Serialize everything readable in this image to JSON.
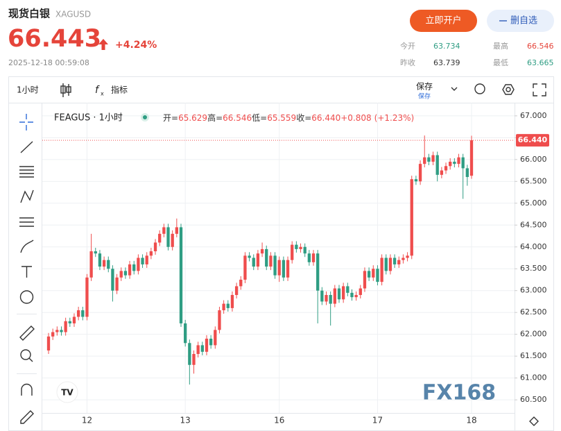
{
  "header": {
    "title": "现货白银",
    "symbol": "XAGUSD",
    "price": "66.443",
    "change": "+4.24%",
    "timestamp": "2025-12-18 00:59:08",
    "open_account": "立即开户",
    "remove_watch": "删自选",
    "stats": [
      {
        "label": "今开",
        "value": "63.734"
      },
      {
        "label": "最高",
        "value": "66.546"
      },
      {
        "label": "昨收",
        "value": "63.739"
      },
      {
        "label": "最低",
        "value": "63.665"
      }
    ]
  },
  "toolbar": {
    "interval": "1小时",
    "indicators": "指标",
    "save": "保存",
    "save_sub": "保存"
  },
  "chart_data": {
    "type": "candlestick",
    "legend": {
      "symbol": "FEAGUS · 1小时",
      "items": [
        {
          "label": "开=",
          "value": "65.629"
        },
        {
          "label": "高=",
          "value": "66.546"
        },
        {
          "label": "低=",
          "value": "65.559"
        },
        {
          "label": "收=",
          "value": "66.440"
        }
      ],
      "change": "+0.808",
      "change_pct": "(+1.23%)"
    },
    "watermark": "FX168",
    "up_color": "#ef4d4d",
    "down_color": "#2f9d83",
    "categories": [
      null,
      null,
      null,
      null,
      null,
      null,
      null,
      null,
      null,
      "12",
      null,
      null,
      null,
      null,
      null,
      null,
      null,
      null,
      null,
      null,
      null,
      null,
      null,
      null,
      null,
      null,
      null,
      null,
      null,
      null,
      null,
      null,
      "13",
      null,
      null,
      null,
      null,
      null,
      null,
      null,
      null,
      null,
      null,
      null,
      null,
      null,
      null,
      null,
      null,
      null,
      null,
      null,
      null,
      null,
      "16",
      null,
      null,
      null,
      null,
      null,
      null,
      null,
      null,
      null,
      null,
      null,
      null,
      null,
      null,
      null,
      null,
      null,
      null,
      null,
      null,
      null,
      null,
      "17",
      null,
      null,
      null,
      null,
      null,
      null,
      null,
      null,
      null,
      null,
      null,
      null,
      null,
      null,
      null,
      null,
      null,
      null,
      null,
      null,
      null,
      "18"
    ],
    "open": [
      61.63,
      61.95,
      62.05,
      62.1,
      62.05,
      62.3,
      62.25,
      62.4,
      62.55,
      62.4,
      63.3,
      63.9,
      63.85,
      63.55,
      63.7,
      63.5,
      63.0,
      63.3,
      63.45,
      63.35,
      63.6,
      63.45,
      63.75,
      63.6,
      63.8,
      63.9,
      64.1,
      64.3,
      64.45,
      64.0,
      64.3,
      64.45,
      62.25,
      61.8,
      61.3,
      61.55,
      61.75,
      61.6,
      61.9,
      61.75,
      62.1,
      62.55,
      62.7,
      62.6,
      62.9,
      63.1,
      63.25,
      63.8,
      63.75,
      63.55,
      63.85,
      63.95,
      63.55,
      63.8,
      63.35,
      63.7,
      63.3,
      63.7,
      64.05,
      63.95,
      64.0,
      63.85,
      63.65,
      63.85,
      63.0,
      62.75,
      62.9,
      62.7,
      63.05,
      62.8,
      63.1,
      62.95,
      62.85,
      62.9,
      63.05,
      63.45,
      63.3,
      63.5,
      63.2,
      63.75,
      63.45,
      63.75,
      63.6,
      63.7,
      63.75,
      63.8,
      65.55,
      65.5,
      65.9,
      66.05,
      65.95,
      66.1,
      65.65,
      65.75,
      65.85,
      65.95,
      65.9,
      66.05,
      65.8,
      65.629
    ],
    "high": [
      62.03,
      62.13,
      62.18,
      62.18,
      62.38,
      62.38,
      62.48,
      62.63,
      62.63,
      63.38,
      64.3,
      63.98,
      63.93,
      63.78,
      63.78,
      63.58,
      63.38,
      63.53,
      63.53,
      63.68,
      63.68,
      63.83,
      63.83,
      63.88,
      63.98,
      64.18,
      64.38,
      64.53,
      64.53,
      64.38,
      64.65,
      64.53,
      62.33,
      61.88,
      61.63,
      61.83,
      61.83,
      61.98,
      61.98,
      62.18,
      62.63,
      62.78,
      62.78,
      62.98,
      63.18,
      63.33,
      63.88,
      63.88,
      63.83,
      63.93,
      64.1,
      64.03,
      63.88,
      63.88,
      63.78,
      63.78,
      63.78,
      64.13,
      64.13,
      64.08,
      64.08,
      63.93,
      63.93,
      63.93,
      63.08,
      62.98,
      62.98,
      63.13,
      63.13,
      63.18,
      63.18,
      63.03,
      62.98,
      63.13,
      63.53,
      63.53,
      63.58,
      63.58,
      63.83,
      63.83,
      63.83,
      63.83,
      63.78,
      63.83,
      63.88,
      65.63,
      65.63,
      65.98,
      66.55,
      66.13,
      66.18,
      66.18,
      65.83,
      65.93,
      66.03,
      66.03,
      66.13,
      66.13,
      65.88,
      66.546
    ],
    "low": [
      61.55,
      61.87,
      61.97,
      61.97,
      61.97,
      62.17,
      62.17,
      62.32,
      62.32,
      62.32,
      63.22,
      63.77,
      63.47,
      63.47,
      63.42,
      62.75,
      62.92,
      63.22,
      63.27,
      63.27,
      63.37,
      63.37,
      63.52,
      63.52,
      63.72,
      63.82,
      64.02,
      64.22,
      63.92,
      63.92,
      64.22,
      62.17,
      61.72,
      60.85,
      61.1,
      61.47,
      61.52,
      61.52,
      61.67,
      61.67,
      62.02,
      62.47,
      62.52,
      62.52,
      62.82,
      63.02,
      63.17,
      63.67,
      63.47,
      63.47,
      63.77,
      63.47,
      63.47,
      63.27,
      63.2,
      63.22,
      63.22,
      63.62,
      63.87,
      63.87,
      63.77,
      63.57,
      63.57,
      62.25,
      62.67,
      62.67,
      62.2,
      62.62,
      62.72,
      62.72,
      62.87,
      62.77,
      62.77,
      62.82,
      62.97,
      63.22,
      63.22,
      63.12,
      63.12,
      63.37,
      63.37,
      63.52,
      63.52,
      63.62,
      63.67,
      63.72,
      65.42,
      65.42,
      65.82,
      65.87,
      65.87,
      65.5,
      65.57,
      65.67,
      65.77,
      65.82,
      65.82,
      65.1,
      65.4,
      65.559
    ],
    "close": [
      61.95,
      62.05,
      62.1,
      62.05,
      62.3,
      62.25,
      62.4,
      62.55,
      62.4,
      63.3,
      63.9,
      63.85,
      63.55,
      63.7,
      63.5,
      63.0,
      63.3,
      63.45,
      63.35,
      63.6,
      63.45,
      63.75,
      63.6,
      63.8,
      63.9,
      64.1,
      64.3,
      64.45,
      64.0,
      64.3,
      64.45,
      62.25,
      61.8,
      61.3,
      61.55,
      61.75,
      61.6,
      61.9,
      61.75,
      62.1,
      62.55,
      62.7,
      62.6,
      62.9,
      63.1,
      63.25,
      63.8,
      63.75,
      63.55,
      63.85,
      63.95,
      63.55,
      63.8,
      63.35,
      63.7,
      63.3,
      63.7,
      64.05,
      63.95,
      64.0,
      63.85,
      63.65,
      63.85,
      63.0,
      62.75,
      62.9,
      62.7,
      63.05,
      62.8,
      63.1,
      62.95,
      62.85,
      62.9,
      63.05,
      63.45,
      63.3,
      63.5,
      63.2,
      63.75,
      63.45,
      63.75,
      63.6,
      63.7,
      63.75,
      63.8,
      65.55,
      65.5,
      65.9,
      66.05,
      65.95,
      66.1,
      65.65,
      65.75,
      65.85,
      65.95,
      65.9,
      66.05,
      65.8,
      65.6,
      66.44
    ],
    "last_price": {
      "value": 66.44,
      "label": "66.440"
    },
    "ylim": [
      60.2,
      67.3
    ],
    "yticks": [
      {
        "value": 60.5,
        "label": "60.500"
      },
      {
        "value": 61,
        "label": "61.000"
      },
      {
        "value": 61.5,
        "label": "61.500"
      },
      {
        "value": 62,
        "label": "62.000"
      },
      {
        "value": 62.5,
        "label": "62.500"
      },
      {
        "value": 63,
        "label": "63.000"
      },
      {
        "value": 63.5,
        "label": "63.500"
      },
      {
        "value": 64,
        "label": "64.000"
      },
      {
        "value": 64.5,
        "label": "64.500"
      },
      {
        "value": 65,
        "label": "65.000"
      },
      {
        "value": 65.5,
        "label": "65.500"
      },
      {
        "value": 66,
        "label": "66.000"
      },
      {
        "value": 66.5,
        "label": "66.500"
      },
      {
        "value": 67,
        "label": "67.000"
      }
    ],
    "grid": true
  }
}
